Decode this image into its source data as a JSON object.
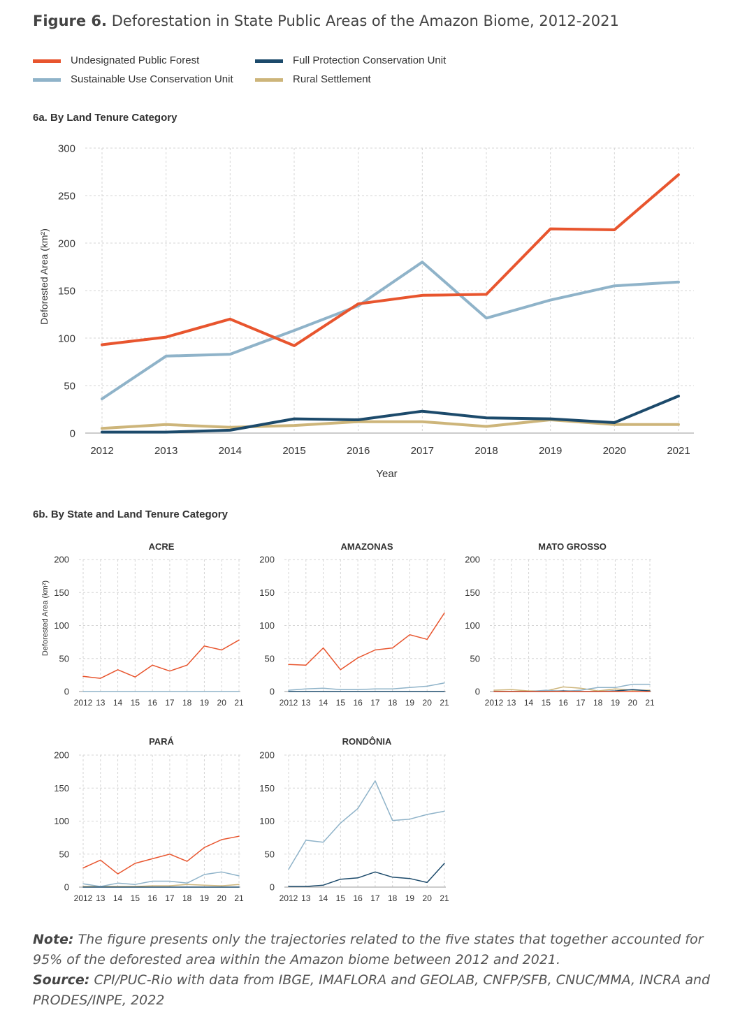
{
  "figure": {
    "label": "Figure 6.",
    "title": "Deforestation in State Public Areas of the Amazon Biome, 2012-2021"
  },
  "colors": {
    "undesignated": "#e8552e",
    "sustainable": "#8fb3c9",
    "full_protection": "#1c4a6b",
    "rural": "#cdb57a"
  },
  "legend": [
    {
      "name": "Undesignated Public Forest",
      "color": "#e8552e"
    },
    {
      "name": "Full Protection Conservation Unit",
      "color": "#1c4a6b"
    },
    {
      "name": "Sustainable Use Conservation Unit",
      "color": "#8fb3c9"
    },
    {
      "name": "Rural Settlement",
      "color": "#cdb57a"
    }
  ],
  "subtitles": {
    "a": "6a. By Land Tenure Category",
    "b": "6b. By State and Land Tenure Category"
  },
  "chart_data": [
    {
      "type": "line",
      "title": "6a. By Land Tenure Category",
      "xlabel": "Year",
      "ylabel": "Deforested Area (km²)",
      "x": [
        "2012",
        "2013",
        "2014",
        "2015",
        "2016",
        "2017",
        "2018",
        "2019",
        "2020",
        "2021"
      ],
      "ylim": [
        0,
        300
      ],
      "yticks": [
        0,
        50,
        100,
        150,
        200,
        250,
        300
      ],
      "grid": true,
      "series": [
        {
          "name": "Sustainable Use Conservation Unit",
          "color": "#8fb3c9",
          "values": [
            36,
            81,
            83,
            108,
            134,
            180,
            121,
            140,
            155,
            159
          ]
        },
        {
          "name": "Rural Settlement",
          "color": "#cdb57a",
          "values": [
            5,
            9,
            6,
            8,
            12,
            12,
            7,
            14,
            9,
            9
          ]
        },
        {
          "name": "Full Protection Conservation Unit",
          "color": "#1c4a6b",
          "values": [
            1,
            1,
            3,
            15,
            14,
            23,
            16,
            15,
            11,
            39
          ]
        },
        {
          "name": "Undesignated Public Forest",
          "color": "#e8552e",
          "values": [
            93,
            101,
            120,
            92,
            136,
            145,
            146,
            215,
            214,
            272
          ]
        }
      ]
    },
    {
      "type": "line",
      "title": "ACRE",
      "ylabel": "Deforested Area (km²)",
      "x": [
        "2012",
        "13",
        "14",
        "15",
        "16",
        "17",
        "18",
        "19",
        "20",
        "21"
      ],
      "ylim": [
        0,
        200
      ],
      "yticks": [
        0,
        50,
        100,
        150,
        200
      ],
      "series": [
        {
          "name": "Sustainable Use Conservation Unit",
          "color": "#8fb3c9",
          "values": [
            0,
            0,
            0,
            0,
            0,
            0,
            0,
            0,
            0,
            0
          ]
        },
        {
          "name": "Undesignated Public Forest",
          "color": "#e8552e",
          "values": [
            23,
            20,
            33,
            22,
            40,
            31,
            40,
            69,
            63,
            78
          ]
        }
      ]
    },
    {
      "type": "line",
      "title": "AMAZONAS",
      "x": [
        "2012",
        "13",
        "14",
        "15",
        "16",
        "17",
        "18",
        "19",
        "20",
        "21"
      ],
      "ylim": [
        0,
        200
      ],
      "yticks": [
        0,
        50,
        100,
        150,
        200
      ],
      "series": [
        {
          "name": "Full Protection Conservation Unit",
          "color": "#1c4a6b",
          "values": [
            0,
            0,
            0,
            0,
            0,
            0,
            0,
            0,
            0,
            0
          ]
        },
        {
          "name": "Sustainable Use Conservation Unit",
          "color": "#8fb3c9",
          "values": [
            2,
            4,
            5,
            3,
            3,
            4,
            4,
            6,
            8,
            13
          ]
        },
        {
          "name": "Undesignated Public Forest",
          "color": "#e8552e",
          "values": [
            41,
            40,
            66,
            33,
            51,
            63,
            66,
            86,
            79,
            119
          ]
        }
      ]
    },
    {
      "type": "line",
      "title": "MATO GROSSO",
      "x": [
        "2012",
        "13",
        "14",
        "15",
        "16",
        "17",
        "18",
        "19",
        "20",
        "21"
      ],
      "ylim": [
        0,
        200
      ],
      "yticks": [
        0,
        50,
        100,
        150,
        200
      ],
      "series": [
        {
          "name": "Rural Settlement",
          "color": "#cdb57a",
          "values": [
            2,
            3,
            1,
            1,
            7,
            5,
            1,
            4,
            2,
            2
          ]
        },
        {
          "name": "Sustainable Use Conservation Unit",
          "color": "#8fb3c9",
          "values": [
            0,
            0,
            0,
            2,
            0,
            2,
            6,
            6,
            11,
            11
          ]
        },
        {
          "name": "Full Protection Conservation Unit",
          "color": "#1c4a6b",
          "values": [
            0,
            0,
            0,
            0,
            1,
            0,
            0,
            1,
            3,
            1
          ]
        },
        {
          "name": "Undesignated Public Forest",
          "color": "#e8552e",
          "values": [
            0,
            0,
            0,
            0,
            0,
            0,
            0,
            0,
            0,
            0
          ]
        }
      ]
    },
    {
      "type": "line",
      "title": "PARÁ",
      "x": [
        "2012",
        "13",
        "14",
        "15",
        "16",
        "17",
        "18",
        "19",
        "20",
        "21"
      ],
      "ylim": [
        0,
        200
      ],
      "yticks": [
        0,
        50,
        100,
        150,
        200
      ],
      "series": [
        {
          "name": "Rural Settlement",
          "color": "#cdb57a",
          "values": [
            1,
            1,
            1,
            1,
            2,
            2,
            4,
            3,
            2,
            4
          ]
        },
        {
          "name": "Sustainable Use Conservation Unit",
          "color": "#8fb3c9",
          "values": [
            5,
            1,
            6,
            4,
            9,
            9,
            6,
            19,
            23,
            17
          ]
        },
        {
          "name": "Full Protection Conservation Unit",
          "color": "#1c4a6b",
          "values": [
            0,
            0,
            0,
            0,
            0,
            0,
            0,
            0,
            0,
            0
          ]
        },
        {
          "name": "Undesignated Public Forest",
          "color": "#e8552e",
          "values": [
            29,
            41,
            20,
            36,
            43,
            50,
            39,
            60,
            72,
            77
          ]
        }
      ]
    },
    {
      "type": "line",
      "title": "RONDÔNIA",
      "x": [
        "2012",
        "13",
        "14",
        "15",
        "16",
        "17",
        "18",
        "19",
        "20",
        "21"
      ],
      "ylim": [
        0,
        200
      ],
      "yticks": [
        0,
        50,
        100,
        150,
        200
      ],
      "series": [
        {
          "name": "Sustainable Use Conservation Unit",
          "color": "#8fb3c9",
          "values": [
            27,
            71,
            68,
            97,
            119,
            161,
            101,
            103,
            110,
            115
          ]
        },
        {
          "name": "Full Protection Conservation Unit",
          "color": "#1c4a6b",
          "values": [
            1,
            1,
            3,
            12,
            14,
            23,
            15,
            13,
            7,
            36
          ]
        }
      ]
    }
  ],
  "note": {
    "label": "Note:",
    "text": "The figure presents only the trajectories related to the five states that together accounted for 95% of the deforested area within the Amazon biome between 2012 and 2021."
  },
  "source": {
    "label": "Source:",
    "text": "CPI/PUC-Rio with data from IBGE, IMAFLORA and GEOLAB, CNFP/SFB, CNUC/MMA, INCRA and PRODES/INPE, 2022"
  }
}
